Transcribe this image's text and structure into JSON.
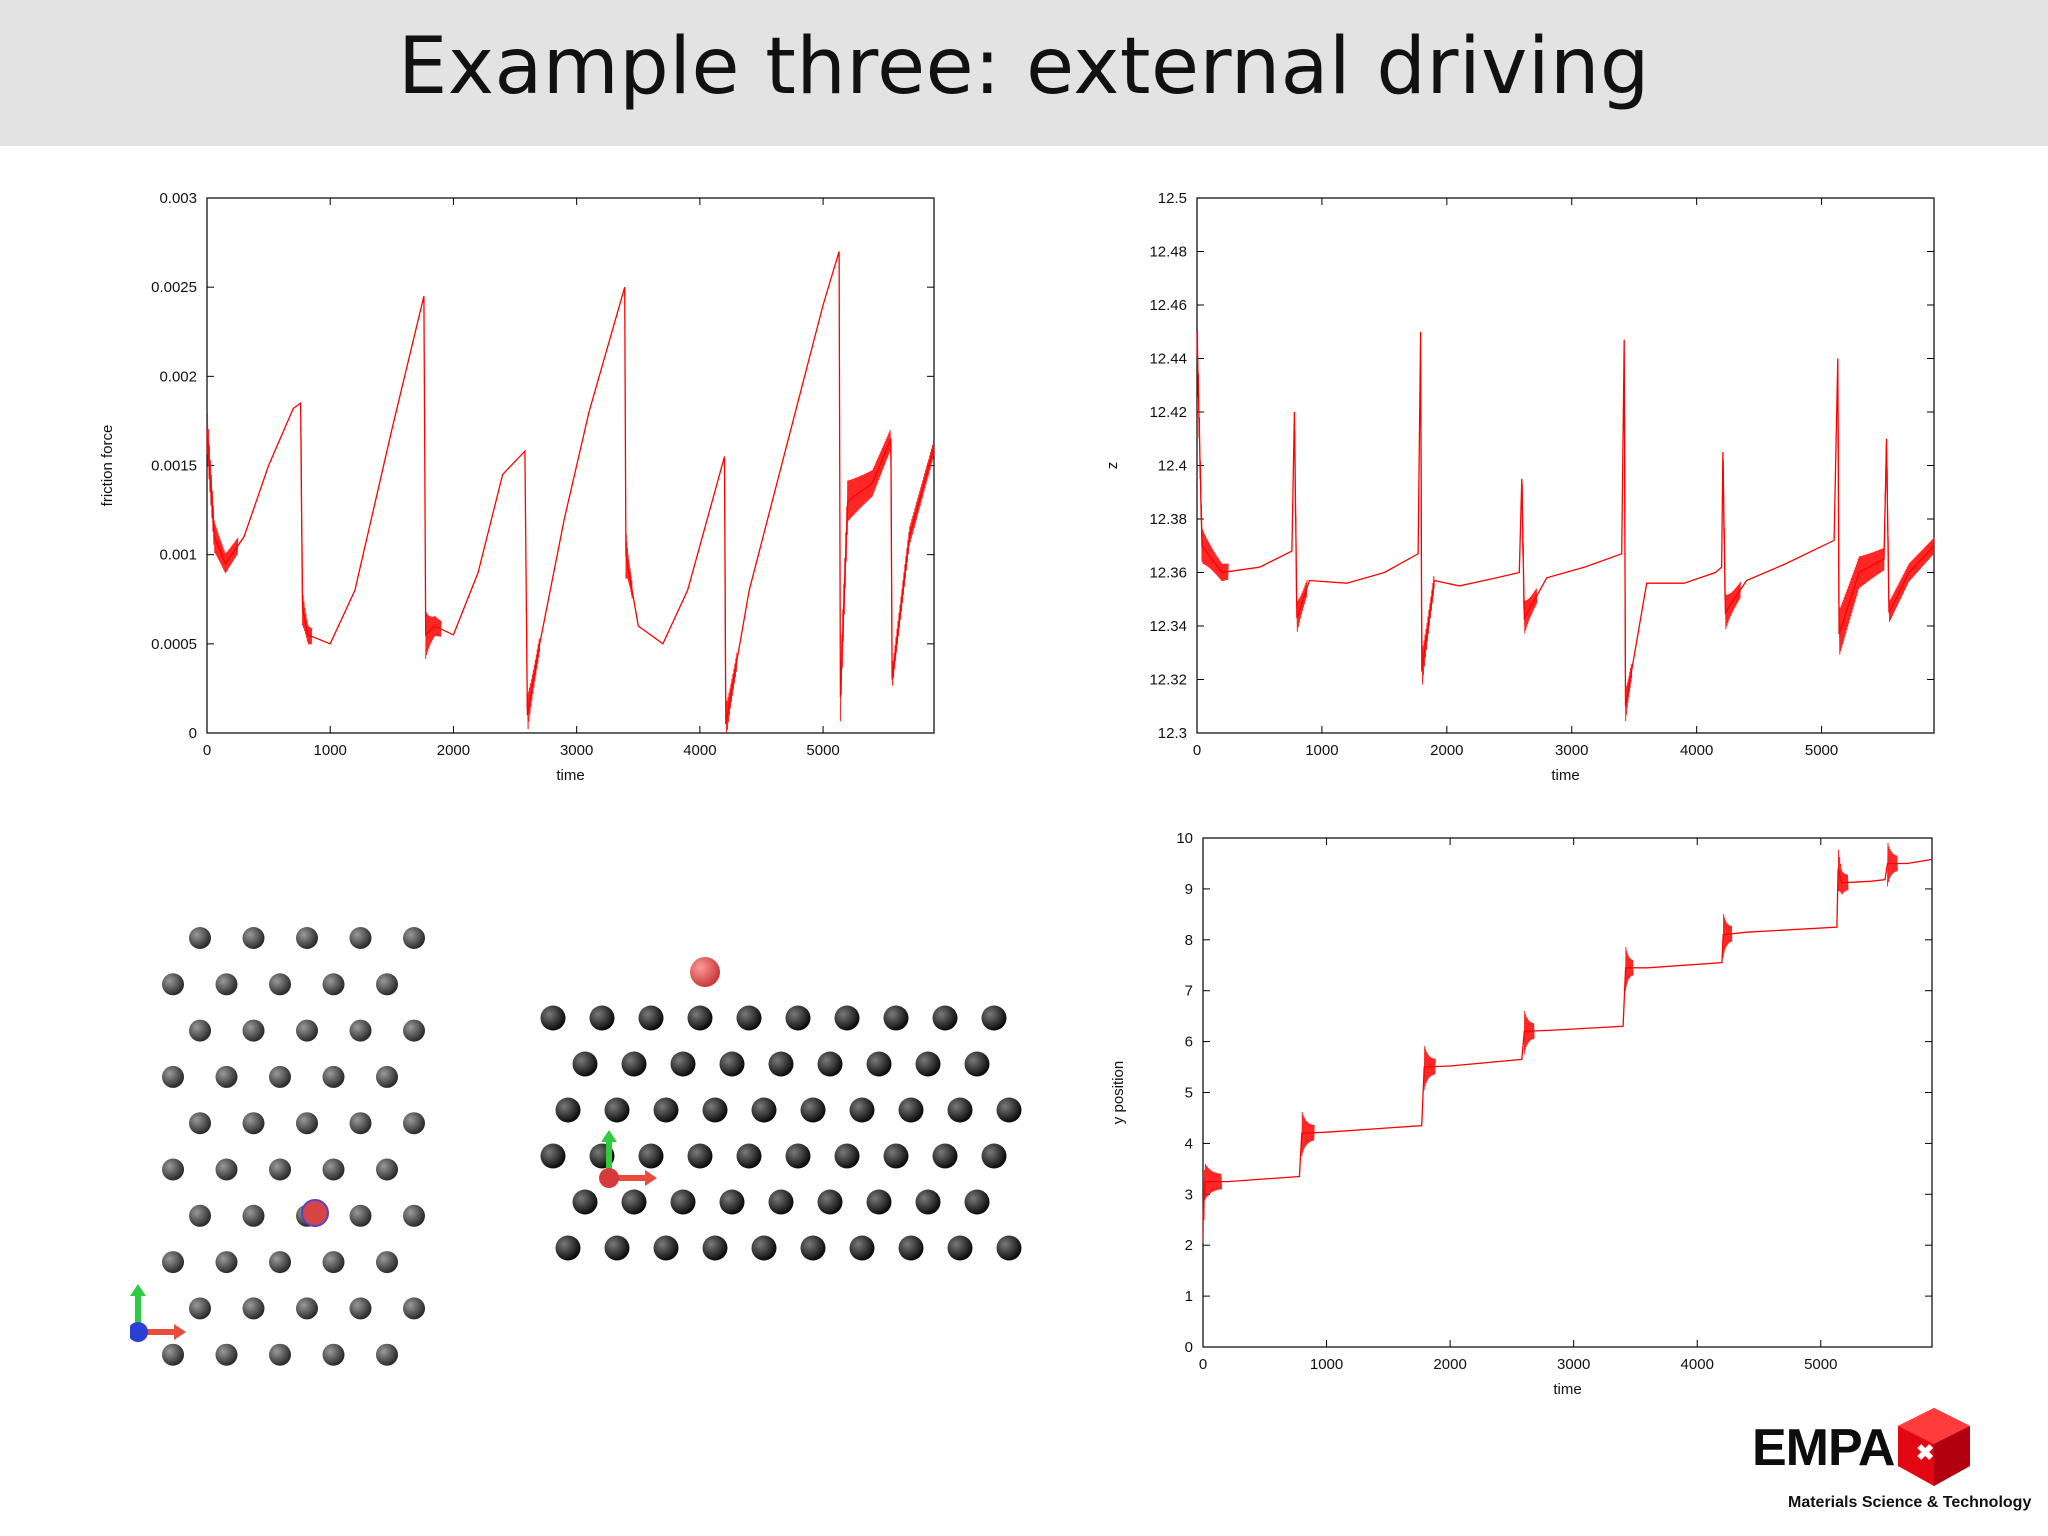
{
  "slide": {
    "title": "Example three: external driving"
  },
  "logo": {
    "brand": "EMPA",
    "tagline": "Materials Science & Technology"
  },
  "colors": {
    "series": "#ff0000",
    "title_bar": "#e3e3e3",
    "atom": "#1a1a1a",
    "adatom": "#e05555"
  },
  "axes_labels": {
    "friction_x": "time",
    "friction_y": "friction force",
    "z_x": "time",
    "z_y": "z",
    "ypos_x": "time",
    "ypos_y": "y position"
  },
  "chart_data": [
    {
      "type": "line",
      "xlabel": "time",
      "ylabel": "friction force",
      "xlim": [
        0,
        5900
      ],
      "ylim": [
        0,
        0.003
      ],
      "xticks": [
        0,
        1000,
        2000,
        3000,
        4000,
        5000
      ],
      "yticks": [
        0,
        0.0005,
        0.001,
        0.0015,
        0.002,
        0.0025,
        0.003
      ],
      "ytick_labels": [
        "0",
        "0.0005",
        "0.001",
        "0.0015",
        "0.002",
        "0.0025",
        "0.003"
      ],
      "grid": false,
      "series": [
        {
          "color": "#ff0000",
          "points": [
            [
              0,
              0.0017
            ],
            [
              60,
              0.0011
            ],
            [
              150,
              0.00095
            ],
            [
              300,
              0.0011
            ],
            [
              500,
              0.0015
            ],
            [
              700,
              0.00182
            ],
            [
              760,
              0.00185
            ],
            [
              775,
              0.0007
            ],
            [
              820,
              0.00055
            ],
            [
              1000,
              0.0005
            ],
            [
              1200,
              0.0008
            ],
            [
              1500,
              0.0017
            ],
            [
              1760,
              0.00245
            ],
            [
              1775,
              0.00055
            ],
            [
              1850,
              0.0006
            ],
            [
              2000,
              0.00055
            ],
            [
              2200,
              0.0009
            ],
            [
              2400,
              0.00145
            ],
            [
              2580,
              0.00158
            ],
            [
              2600,
              0.0001
            ],
            [
              2700,
              0.0005
            ],
            [
              2900,
              0.0012
            ],
            [
              3100,
              0.0018
            ],
            [
              3390,
              0.0025
            ],
            [
              3400,
              0.001
            ],
            [
              3500,
              0.0006
            ],
            [
              3700,
              0.0005
            ],
            [
              3900,
              0.0008
            ],
            [
              4100,
              0.0013
            ],
            [
              4200,
              0.00155
            ],
            [
              4210,
              5e-05
            ],
            [
              4400,
              0.0008
            ],
            [
              4700,
              0.0016
            ],
            [
              5000,
              0.0024
            ],
            [
              5130,
              0.0027
            ],
            [
              5140,
              0.0002
            ],
            [
              5200,
              0.0013
            ],
            [
              5400,
              0.0014
            ],
            [
              5550,
              0.00165
            ],
            [
              5560,
              0.0003
            ],
            [
              5700,
              0.0011
            ],
            [
              5900,
              0.0016
            ]
          ],
          "noisy_ranges": [
            [
              0,
              250
            ],
            [
              760,
              850
            ],
            [
              1775,
              1900
            ],
            [
              2590,
              2700
            ],
            [
              3400,
              3450
            ],
            [
              4200,
              4300
            ],
            [
              5140,
              5900
            ]
          ]
        }
      ]
    },
    {
      "type": "line",
      "xlabel": "time",
      "ylabel": "z",
      "xlim": [
        0,
        5900
      ],
      "ylim": [
        12.3,
        12.5
      ],
      "xticks": [
        0,
        1000,
        2000,
        3000,
        4000,
        5000
      ],
      "yticks": [
        12.3,
        12.32,
        12.34,
        12.36,
        12.38,
        12.4,
        12.42,
        12.44,
        12.46,
        12.48,
        12.5
      ],
      "ytick_labels": [
        "12.3",
        "12.32",
        "12.34",
        "12.36",
        "12.38",
        "12.4",
        "12.42",
        "12.44",
        "12.46",
        "12.48",
        "12.5"
      ],
      "grid": false,
      "series": [
        {
          "color": "#ff0000",
          "points": [
            [
              0,
              12.45
            ],
            [
              40,
              12.37
            ],
            [
              200,
              12.36
            ],
            [
              500,
              12.362
            ],
            [
              760,
              12.368
            ],
            [
              780,
              12.42
            ],
            [
              800,
              12.343
            ],
            [
              900,
              12.357
            ],
            [
              1200,
              12.356
            ],
            [
              1500,
              12.36
            ],
            [
              1770,
              12.367
            ],
            [
              1790,
              12.45
            ],
            [
              1800,
              12.323
            ],
            [
              1900,
              12.357
            ],
            [
              2100,
              12.355
            ],
            [
              2400,
              12.358
            ],
            [
              2580,
              12.36
            ],
            [
              2600,
              12.395
            ],
            [
              2620,
              12.343
            ],
            [
              2800,
              12.358
            ],
            [
              3100,
              12.362
            ],
            [
              3400,
              12.367
            ],
            [
              3420,
              12.447
            ],
            [
              3430,
              12.31
            ],
            [
              3600,
              12.356
            ],
            [
              3900,
              12.356
            ],
            [
              4150,
              12.36
            ],
            [
              4200,
              12.362
            ],
            [
              4210,
              12.405
            ],
            [
              4230,
              12.345
            ],
            [
              4400,
              12.357
            ],
            [
              4700,
              12.363
            ],
            [
              5100,
              12.372
            ],
            [
              5130,
              12.44
            ],
            [
              5140,
              12.337
            ],
            [
              5300,
              12.36
            ],
            [
              5500,
              12.365
            ],
            [
              5520,
              12.41
            ],
            [
              5540,
              12.345
            ],
            [
              5700,
              12.36
            ],
            [
              5900,
              12.37
            ]
          ],
          "noisy_ranges": [
            [
              0,
              250
            ],
            [
              780,
              880
            ],
            [
              1790,
              1900
            ],
            [
              2600,
              2720
            ],
            [
              3420,
              3480
            ],
            [
              4210,
              4350
            ],
            [
              5130,
              5900
            ]
          ]
        }
      ]
    },
    {
      "type": "line",
      "xlabel": "time",
      "ylabel": "y position",
      "xlim": [
        0,
        5900
      ],
      "ylim": [
        0,
        10
      ],
      "xticks": [
        0,
        1000,
        2000,
        3000,
        4000,
        5000
      ],
      "yticks": [
        0,
        1,
        2,
        3,
        4,
        5,
        6,
        7,
        8,
        9,
        10
      ],
      "ytick_labels": [
        "0",
        "1",
        "2",
        "3",
        "4",
        "5",
        "6",
        "7",
        "8",
        "9",
        "10"
      ],
      "grid": false,
      "series": [
        {
          "color": "#ff0000",
          "points": [
            [
              0,
              2.5
            ],
            [
              15,
              3.25
            ],
            [
              200,
              3.25
            ],
            [
              780,
              3.35
            ],
            [
              800,
              4.2
            ],
            [
              1000,
              4.22
            ],
            [
              1770,
              4.35
            ],
            [
              1790,
              5.5
            ],
            [
              2000,
              5.52
            ],
            [
              2580,
              5.65
            ],
            [
              2600,
              6.2
            ],
            [
              2800,
              6.22
            ],
            [
              3400,
              6.3
            ],
            [
              3420,
              7.45
            ],
            [
              3600,
              7.45
            ],
            [
              4200,
              7.55
            ],
            [
              4210,
              8.1
            ],
            [
              4400,
              8.15
            ],
            [
              5130,
              8.25
            ],
            [
              5140,
              9.4
            ],
            [
              5170,
              9.12
            ],
            [
              5400,
              9.15
            ],
            [
              5520,
              9.18
            ],
            [
              5540,
              9.5
            ],
            [
              5700,
              9.5
            ],
            [
              5900,
              9.58
            ]
          ],
          "noisy_ranges": [
            [
              0,
              150
            ],
            [
              800,
              900
            ],
            [
              1790,
              1880
            ],
            [
              2600,
              2680
            ],
            [
              3420,
              3480
            ],
            [
              4210,
              4280
            ],
            [
              5140,
              5220
            ],
            [
              5540,
              5620
            ]
          ]
        }
      ]
    }
  ]
}
